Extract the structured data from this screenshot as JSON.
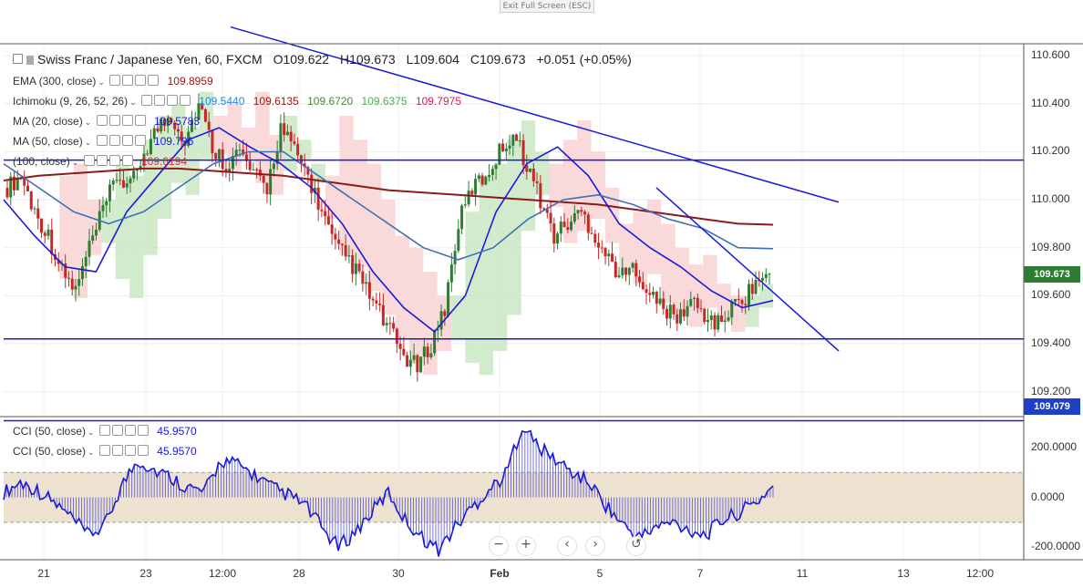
{
  "toolbar": {
    "exit_fullscreen": "Exit Full Screen (ESC)"
  },
  "header": {
    "symbol": "Swiss Franc / Japanese Yen, 60, FXCM",
    "open": "O109.622",
    "high": "H109.673",
    "low": "L109.604",
    "close": "C109.673",
    "change": "+0.051 (+0.05%)"
  },
  "legend": [
    {
      "label": "EMA (300, close)",
      "value": "109.8959",
      "color": "#a31515"
    },
    {
      "label": "Ichimoku (9, 26, 52, 26)",
      "values": [
        "109.5440",
        "109.6135",
        "109.6720",
        "109.6375",
        "109.7975"
      ],
      "colors": [
        "#1e88e5",
        "#a31515",
        "#4a8a2a",
        "#4caf50",
        "#d81b60"
      ]
    },
    {
      "label": "MA (20, close)",
      "value": "109.5783",
      "color": "#1a1adb"
    },
    {
      "label": "MA (50, close)",
      "value": "109.796",
      "color": "#1a1adb"
    },
    {
      "label": "(100, close)",
      "value": "109.6194",
      "color": "#d32f2f"
    }
  ],
  "cci_legend": [
    {
      "label": "CCI (50, close)",
      "value": "45.9570",
      "color": "#1a1adb"
    },
    {
      "label": "CCI (50, close)",
      "value": "45.9570",
      "color": "#1a1adb"
    }
  ],
  "price_boxes": [
    {
      "value": "109.673",
      "color": "#2e7d32"
    },
    {
      "value": "109.079",
      "color": "#1e40c8"
    }
  ],
  "nav_buttons": [
    "−",
    "+",
    "‹",
    "›",
    "↺"
  ],
  "colors": {
    "up": "#2e7d32",
    "down": "#c62828",
    "trend": "#1a1adb",
    "kumo_bull": "#c8e6c0",
    "kumo_bear": "#f8cfd0",
    "cci_band": "#ede2cf"
  },
  "chart_data": [
    {
      "type": "candlestick",
      "title": "Swiss Franc / Japanese Yen, 60, FXCM",
      "ylim": [
        109.1,
        110.65
      ],
      "yticks": [
        "110.600",
        "110.400",
        "110.200",
        "110.000",
        "109.800",
        "109.600",
        "109.400",
        "109.200"
      ],
      "xticks": [
        "21",
        "23",
        "12:00",
        "28",
        "30",
        "Feb",
        "5",
        "7",
        "11",
        "13",
        "12:00"
      ],
      "last_close": 109.673,
      "support_resistance": [
        110.165,
        109.42,
        109.079
      ],
      "trendlines": [
        {
          "name": "upper",
          "from": [
            0.0,
            110.72
          ],
          "to": [
            1.0,
            109.99
          ]
        },
        {
          "name": "lower",
          "from": [
            0.0,
            110.05
          ],
          "to": [
            1.0,
            109.37
          ]
        }
      ],
      "series": [
        {
          "name": "Close",
          "values": [
            110.05,
            110.1,
            109.95,
            109.85,
            109.7,
            109.62,
            109.8,
            109.95,
            110.1,
            110.05,
            110.2,
            110.3,
            110.35,
            110.25,
            110.4,
            110.22,
            110.15,
            110.2,
            110.1,
            110.05,
            110.3,
            110.2,
            110.1,
            109.95,
            109.8,
            109.75,
            109.65,
            109.55,
            109.45,
            109.35,
            109.3,
            109.4,
            109.55,
            109.9,
            110.05,
            110.1,
            110.2,
            110.28,
            110.15,
            110.0,
            109.85,
            109.9,
            109.95,
            109.85,
            109.75,
            109.68,
            109.72,
            109.6,
            109.55,
            109.5,
            109.58,
            109.52,
            109.48,
            109.55,
            109.6,
            109.673
          ]
        },
        {
          "name": "EMA (300, close)",
          "values": [
            110.08,
            110.1,
            110.11,
            110.12,
            110.13,
            110.13,
            110.12,
            110.11,
            110.1,
            110.08,
            110.06,
            110.04,
            110.03,
            110.02,
            110.01,
            110.0,
            109.99,
            109.98,
            109.96,
            109.94,
            109.92,
            109.9,
            109.896
          ]
        },
        {
          "name": "MA (20, close)",
          "values": [
            110.0,
            109.85,
            109.72,
            109.7,
            109.95,
            110.1,
            110.25,
            110.3,
            110.22,
            110.15,
            110.05,
            109.9,
            109.7,
            109.55,
            109.45,
            109.6,
            109.95,
            110.15,
            110.22,
            110.1,
            109.9,
            109.8,
            109.72,
            109.62,
            109.55,
            109.58
          ]
        },
        {
          "name": "MA (50, close)",
          "values": [
            110.15,
            110.05,
            109.95,
            109.9,
            109.95,
            110.05,
            110.15,
            110.2,
            110.2,
            110.1,
            110.0,
            109.9,
            109.8,
            109.75,
            109.8,
            109.92,
            110.0,
            110.02,
            109.98,
            109.92,
            109.88,
            109.8,
            109.796
          ]
        }
      ]
    },
    {
      "type": "line",
      "title": "CCI (50, close)",
      "ylim": [
        -250,
        320
      ],
      "yticks": [
        "200.0000",
        "0.0000",
        "-200.0000"
      ],
      "band": [
        -100,
        100
      ],
      "last_value": 45.957,
      "series": [
        {
          "name": "CCI (50, close)",
          "values": [
            20,
            60,
            30,
            -20,
            -80,
            -150,
            -120,
            40,
            150,
            110,
            80,
            40,
            20,
            150,
            130,
            90,
            40,
            10,
            -30,
            -120,
            -200,
            -140,
            -60,
            20,
            -90,
            -160,
            -210,
            -120,
            -40,
            30,
            90,
            290,
            200,
            150,
            100,
            60,
            -30,
            -110,
            -160,
            -120,
            -100,
            -130,
            -150,
            -90,
            -60,
            -20,
            45.957
          ]
        }
      ]
    }
  ]
}
